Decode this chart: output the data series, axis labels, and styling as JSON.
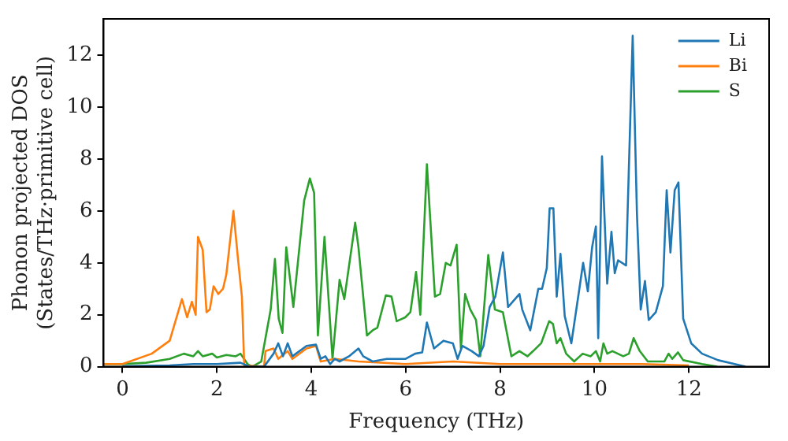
{
  "chart_data": {
    "type": "line",
    "xlabel": "Frequency (THz)",
    "ylabel": "Phonon projected DOS\n(States/THz·primitive cell)",
    "xlim": [
      -0.4,
      13.7
    ],
    "ylim": [
      0,
      13.4
    ],
    "xticks": [
      0,
      2,
      4,
      6,
      8,
      10,
      12
    ],
    "yticks": [
      0,
      2,
      4,
      6,
      8,
      10,
      12
    ],
    "grid": false,
    "legend": "top right",
    "marker": "none",
    "line_style": "solid",
    "series": [
      {
        "name": "Li",
        "color": "#1f77b4",
        "x": [
          0,
          1,
          1.5,
          2,
          2.5,
          2.7,
          3.0,
          3.2,
          3.3,
          3.4,
          3.5,
          3.6,
          3.9,
          4.1,
          4.2,
          4.3,
          4.4,
          4.5,
          4.6,
          4.8,
          5.0,
          5.1,
          5.3,
          5.6,
          6.0,
          6.2,
          6.35,
          6.45,
          6.6,
          6.8,
          7.0,
          7.1,
          7.2,
          7.4,
          7.55,
          7.65,
          7.78,
          7.9,
          8.06,
          8.17,
          8.41,
          8.47,
          8.64,
          8.81,
          8.89,
          8.99,
          9.05,
          9.13,
          9.2,
          9.28,
          9.37,
          9.51,
          9.68,
          9.76,
          9.86,
          9.95,
          10.03,
          10.08,
          10.16,
          10.27,
          10.36,
          10.43,
          10.5,
          10.67,
          10.81,
          10.9,
          10.98,
          11.07,
          11.15,
          11.3,
          11.45,
          11.53,
          11.61,
          11.7,
          11.78,
          11.88,
          12.05,
          12.28,
          12.62,
          12.97,
          13.2
        ],
        "values": [
          0.02,
          0.05,
          0.1,
          0.1,
          0.15,
          0,
          0,
          0.5,
          0.9,
          0.4,
          0.9,
          0.4,
          0.8,
          0.85,
          0.3,
          0.4,
          0.1,
          0.3,
          0.2,
          0.4,
          0.7,
          0.4,
          0.2,
          0.3,
          0.3,
          0.5,
          0.55,
          1.7,
          0.7,
          1.0,
          0.9,
          0.3,
          0.8,
          0.6,
          0.4,
          0.8,
          2.3,
          2.7,
          4.4,
          2.3,
          2.8,
          2.2,
          1.4,
          3.0,
          3.0,
          3.8,
          6.1,
          6.1,
          2.7,
          4.35,
          1.95,
          0.9,
          3.0,
          4.0,
          2.9,
          4.6,
          5.4,
          1.1,
          8.1,
          3.2,
          5.2,
          3.6,
          4.1,
          3.9,
          12.75,
          5.9,
          2.2,
          3.3,
          1.8,
          2.1,
          3.1,
          6.8,
          4.4,
          6.8,
          7.1,
          1.85,
          0.9,
          0.5,
          0.25,
          0.1,
          0
        ]
      },
      {
        "name": "Bi",
        "color": "#ff7f0e",
        "x": [
          -0.4,
          0,
          0.62,
          1.0,
          1.26,
          1.37,
          1.47,
          1.55,
          1.6,
          1.7,
          1.78,
          1.85,
          1.93,
          2.03,
          2.13,
          2.2,
          2.35,
          2.45,
          2.53,
          2.58,
          3.0,
          3.03,
          3.2,
          3.3,
          3.5,
          3.6,
          3.9,
          4.1,
          4.2,
          4.5,
          5,
          6,
          7,
          8,
          9,
          10,
          11,
          12
        ],
        "values": [
          0.1,
          0.1,
          0.5,
          1.0,
          2.6,
          1.9,
          2.5,
          2.0,
          5.0,
          4.5,
          2.1,
          2.2,
          3.1,
          2.8,
          3.0,
          3.55,
          6.0,
          4.1,
          2.7,
          0.05,
          0,
          0.6,
          0.7,
          0.3,
          0.6,
          0.3,
          0.7,
          0.8,
          0.2,
          0.3,
          0.2,
          0.1,
          0.2,
          0.1,
          0.1,
          0.1,
          0.1,
          0.05
        ]
      },
      {
        "name": "S",
        "color": "#2ca02c",
        "x": [
          -0.4,
          0,
          0.5,
          1,
          1.3,
          1.5,
          1.6,
          1.7,
          1.9,
          2.0,
          2.2,
          2.4,
          2.5,
          2.65,
          2.75,
          2.94,
          3.14,
          3.23,
          3.31,
          3.39,
          3.47,
          3.62,
          3.85,
          3.97,
          4.06,
          4.14,
          4.28,
          4.45,
          4.6,
          4.7,
          4.93,
          5.0,
          5.18,
          5.3,
          5.4,
          5.58,
          5.7,
          5.81,
          5.99,
          6.1,
          6.22,
          6.31,
          6.45,
          6.62,
          6.73,
          6.85,
          6.95,
          7.08,
          7.17,
          7.26,
          7.37,
          7.49,
          7.58,
          7.75,
          7.89,
          8.06,
          8.24,
          8.41,
          8.58,
          8.7,
          8.87,
          9.04,
          9.12,
          9.2,
          9.28,
          9.4,
          9.57,
          9.75,
          9.92,
          10.03,
          10.12,
          10.19,
          10.27,
          10.38,
          10.61,
          10.73,
          10.83,
          10.96,
          11.13,
          11.48,
          11.57,
          11.65,
          11.77,
          11.88,
          12.28,
          12.6
        ],
        "values": [
          0.1,
          0.1,
          0.15,
          0.3,
          0.5,
          0.4,
          0.6,
          0.4,
          0.5,
          0.35,
          0.45,
          0.4,
          0.5,
          0.1,
          0,
          0.2,
          2.2,
          4.15,
          1.85,
          1.3,
          4.6,
          2.3,
          6.4,
          7.25,
          6.7,
          1.2,
          5.0,
          0.3,
          3.35,
          2.6,
          5.55,
          4.6,
          1.2,
          1.4,
          1.5,
          2.75,
          2.7,
          1.75,
          1.9,
          2.1,
          3.65,
          2.0,
          7.8,
          2.7,
          2.8,
          4.0,
          3.9,
          4.7,
          0.7,
          2.8,
          2.2,
          1.8,
          0.4,
          4.3,
          2.2,
          2.1,
          0.4,
          0.6,
          0.4,
          0.6,
          0.9,
          1.75,
          1.65,
          0.9,
          1.1,
          0.5,
          0.2,
          0.5,
          0.4,
          0.6,
          0.2,
          0.9,
          0.5,
          0.6,
          0.4,
          0.5,
          1.1,
          0.6,
          0.2,
          0.2,
          0.5,
          0.3,
          0.55,
          0.25,
          0.1,
          0
        ]
      }
    ]
  }
}
